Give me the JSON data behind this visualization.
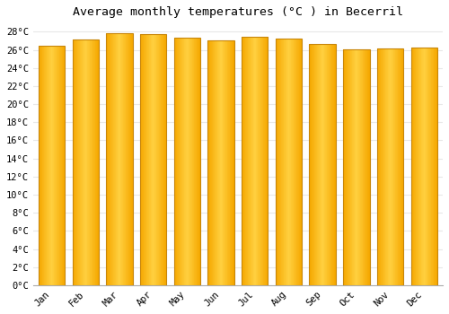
{
  "title": "Average monthly temperatures (°C ) in Becerril",
  "months": [
    "Jan",
    "Feb",
    "Mar",
    "Apr",
    "May",
    "Jun",
    "Jul",
    "Aug",
    "Sep",
    "Oct",
    "Nov",
    "Dec"
  ],
  "temperatures": [
    26.5,
    27.1,
    27.8,
    27.7,
    27.3,
    27.0,
    27.4,
    27.2,
    26.6,
    26.1,
    26.2,
    26.3
  ],
  "bar_color_center": "#FFD040",
  "bar_color_edge": "#F5A800",
  "bar_border_color": "#C8860A",
  "ylim": [
    0,
    29
  ],
  "ytick_step": 2,
  "background_color": "#ffffff",
  "grid_color": "#e8e8e8",
  "title_fontsize": 9.5,
  "tick_fontsize": 7.5,
  "font_family": "monospace"
}
